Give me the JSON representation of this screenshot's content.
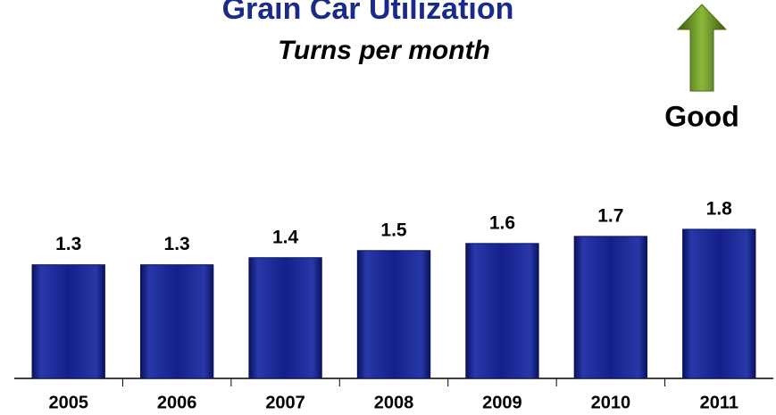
{
  "chart_data": {
    "type": "bar",
    "title": "Grain Car Utilization",
    "subtitle": "Turns per month",
    "annotation": "Good",
    "categories": [
      "2005",
      "2006",
      "2007",
      "2008",
      "2009",
      "2010",
      "2011"
    ],
    "values": [
      1.3,
      1.3,
      1.4,
      1.5,
      1.6,
      1.7,
      1.8
    ],
    "color": "#14208a",
    "ylim": [
      -0.3,
      2.0
    ]
  }
}
